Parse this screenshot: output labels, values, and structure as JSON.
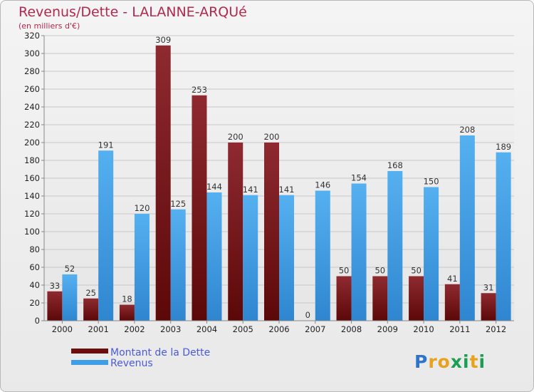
{
  "chart_data": {
    "type": "bar",
    "title": "Revenus/Dette - LALANNE-ARQUé",
    "subtitle": "(en milliers d'€)",
    "categories": [
      "2000",
      "2001",
      "2002",
      "2003",
      "2004",
      "2005",
      "2006",
      "2007",
      "2008",
      "2009",
      "2010",
      "2011",
      "2012"
    ],
    "series": [
      {
        "name": "Montant de la Dette",
        "color": "#7a1a1a",
        "values": [
          33,
          25,
          18,
          309,
          253,
          200,
          200,
          0,
          50,
          50,
          50,
          41,
          31
        ]
      },
      {
        "name": "Revenus",
        "color": "#3f9fe6",
        "values": [
          52,
          191,
          120,
          125,
          144,
          141,
          141,
          146,
          154,
          168,
          150,
          208,
          189
        ]
      }
    ],
    "ylim": [
      0,
      320
    ],
    "yticks": [
      0,
      20,
      40,
      60,
      80,
      100,
      120,
      140,
      160,
      180,
      200,
      220,
      240,
      260,
      280,
      300,
      320
    ],
    "grid": true,
    "legend_position": "bottom-left"
  },
  "logo": {
    "text": "Proxiti",
    "letters": [
      "P",
      "r",
      "o",
      "x",
      "i",
      "t",
      "i"
    ],
    "colors": [
      "#2f74c9",
      "#e8a21e",
      "#e8a21e",
      "#1b9d52",
      "#1b9d52",
      "#e8a21e",
      "#1b9d52"
    ]
  }
}
